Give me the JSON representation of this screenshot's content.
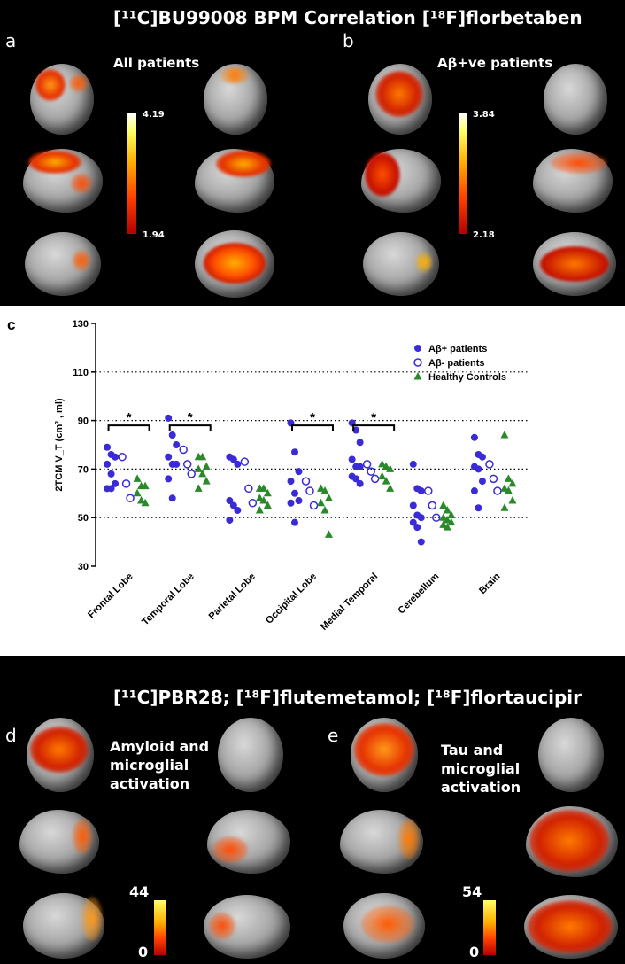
{
  "top_title": "[¹¹C]BU99008 BPM Correlation [¹⁸F]florbetaben",
  "panel_a": {
    "letter": "a",
    "subtitle": "All patients",
    "scale_max": "4.19",
    "scale_min": "1.94"
  },
  "panel_b": {
    "letter": "b",
    "subtitle": "Aβ+ve patients",
    "scale_max": "3.84",
    "scale_min": "2.18"
  },
  "panel_c": {
    "letter": "c"
  },
  "bottom_title": "[¹¹C]PBR28; [¹⁸F]flutemetamol; [¹⁸F]flortaucipir",
  "panel_d": {
    "letter": "d",
    "label_lines": [
      "Amyloid and",
      "microglial",
      "activation"
    ],
    "scale_max": "44",
    "scale_min": "0"
  },
  "panel_e": {
    "letter": "e",
    "label_lines": [
      "Tau and",
      "microglial",
      "activation"
    ],
    "scale_max": "54",
    "scale_min": "0"
  },
  "colors": {
    "ab_pos": "#3a2bd6",
    "ab_neg": "#3a2bd6",
    "hc": "#2a8a2a"
  },
  "chart_data": {
    "type": "scatter",
    "ylabel": "2TCM V_T (cm³ , ml)",
    "ylim": [
      30,
      130
    ],
    "yticks": [
      30,
      50,
      70,
      90,
      110,
      130
    ],
    "dotted_gridlines": [
      50,
      70,
      90,
      110
    ],
    "categories": [
      "Frontal Lobe",
      "Temporal Lobe",
      "Parietal Lobe",
      "Occipital Lobe",
      "Medial Temporal",
      "Cerebellum",
      "Brain"
    ],
    "legend_position": "top-right",
    "series": [
      {
        "name": "Aβ+ patients",
        "marker": "filled-circle",
        "values": [
          [
            79,
            76,
            75,
            72,
            68,
            64,
            62,
            62
          ],
          [
            91,
            84,
            80,
            75,
            72,
            72,
            66,
            58
          ],
          [
            75,
            74,
            72,
            57,
            55,
            53,
            49
          ],
          [
            89,
            77,
            69,
            65,
            60,
            57,
            56,
            48
          ],
          [
            89,
            86,
            81,
            74,
            71,
            71,
            67,
            66,
            64
          ],
          [
            72,
            62,
            61,
            55,
            51,
            50,
            48,
            46,
            40
          ],
          [
            83,
            76,
            75,
            71,
            70,
            65,
            61,
            54
          ]
        ]
      },
      {
        "name": "Aβ- patients",
        "marker": "open-circle",
        "values": [
          [
            75,
            64,
            58
          ],
          [
            78,
            72,
            68
          ],
          [
            73,
            62,
            56
          ],
          [
            65,
            61,
            55
          ],
          [
            72,
            69,
            66
          ],
          [
            61,
            55,
            50
          ],
          [
            72,
            66,
            61
          ]
        ]
      },
      {
        "name": "Healthy Controls",
        "marker": "filled-triangle",
        "values": [
          [
            66,
            63,
            63,
            60,
            57,
            56
          ],
          [
            75,
            75,
            71,
            70,
            68,
            65,
            62
          ],
          [
            62,
            62,
            60,
            58,
            57,
            55,
            53
          ],
          [
            62,
            61,
            58,
            56,
            53,
            43
          ],
          [
            72,
            71,
            70,
            67,
            65,
            62
          ],
          [
            55,
            53,
            51,
            50,
            49,
            48,
            47,
            46
          ],
          [
            84,
            66,
            64,
            62,
            61,
            57,
            54
          ]
        ]
      }
    ],
    "significance": [
      {
        "category_index": 0,
        "label": "*"
      },
      {
        "category_index": 1,
        "label": "*"
      },
      {
        "category_index": 3,
        "label": "*"
      },
      {
        "category_index": 4,
        "label": "*"
      }
    ]
  }
}
